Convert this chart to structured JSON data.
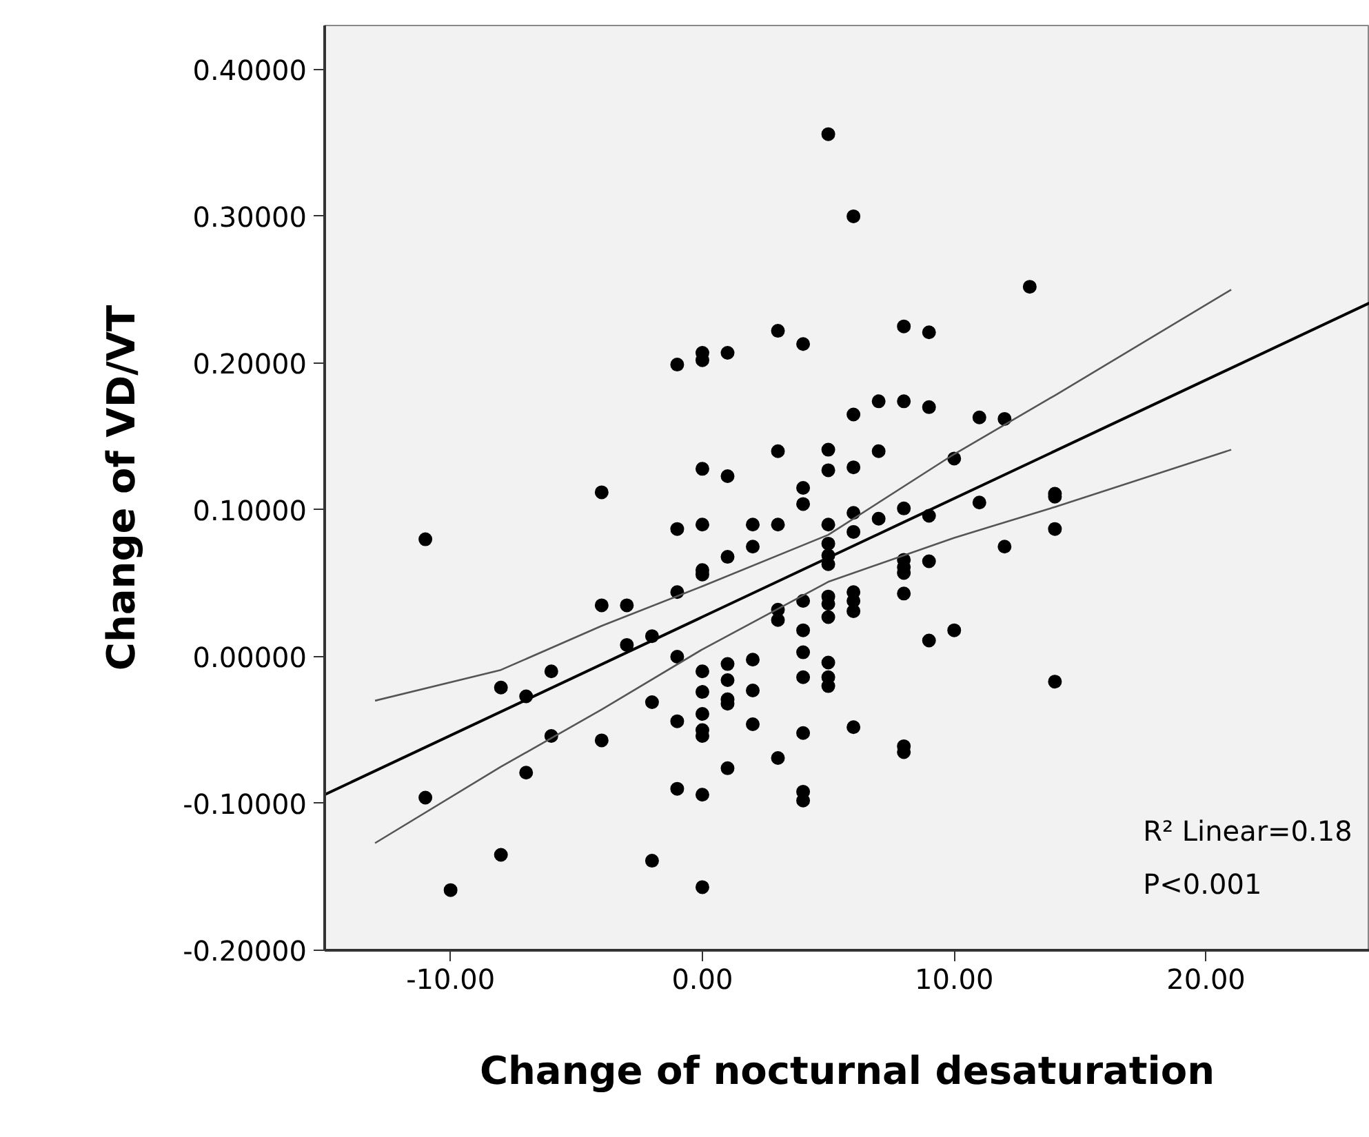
{
  "chart_data": {
    "type": "scatter",
    "xlabel": "Change of nocturnal desaturation",
    "ylabel": "Change of VD/VT",
    "xlim": [
      -15,
      26.5
    ],
    "ylim": [
      -0.2,
      0.43
    ],
    "xticks": [
      {
        "value": -10,
        "label": "-10.00"
      },
      {
        "value": 0,
        "label": "0.00"
      },
      {
        "value": 10,
        "label": "10.00"
      },
      {
        "value": 20,
        "label": "20.00"
      }
    ],
    "yticks": [
      {
        "value": -0.2,
        "label": "-0.20000"
      },
      {
        "value": -0.1,
        "label": "-0.10000"
      },
      {
        "value": 0,
        "label": "0.00000"
      },
      {
        "value": 0.1,
        "label": "0.10000"
      },
      {
        "value": 0.2,
        "label": "0.20000"
      },
      {
        "value": 0.3,
        "label": "0.30000"
      },
      {
        "value": 0.4,
        "label": "0.40000"
      }
    ],
    "grid": false,
    "marker": "circle",
    "line_style": "solid",
    "annotations": [
      "R² Linear=0.18",
      "P<0.001"
    ],
    "series": [
      {
        "color": "#000000",
        "x": [
          5,
          3,
          4,
          -1,
          0,
          0,
          1,
          3,
          5,
          5,
          0,
          1,
          4,
          -4,
          6,
          13,
          8,
          9,
          6,
          7,
          8,
          9,
          11,
          12,
          6,
          7,
          10,
          14,
          4,
          -11,
          -1,
          0,
          2,
          3,
          5,
          2,
          1,
          5,
          5,
          5,
          0,
          0,
          -1,
          -4,
          -3,
          3,
          3,
          4,
          5,
          5,
          5,
          4,
          -3,
          -2,
          -1,
          4,
          4,
          5,
          5,
          5,
          -8,
          -7,
          -6,
          -6,
          -4,
          -2,
          -1,
          0,
          0,
          0,
          0,
          0,
          1,
          1,
          1,
          1,
          2,
          2,
          2,
          3,
          4,
          1,
          -11,
          -7,
          -1,
          0,
          4,
          4,
          -8,
          -2,
          -10,
          0,
          6,
          6,
          7,
          8,
          9,
          11,
          14,
          14,
          12,
          8,
          8,
          8,
          9,
          8,
          6,
          6,
          6,
          10,
          9,
          14,
          6,
          8,
          8
        ],
        "values": [
          0.356,
          0.222,
          0.213,
          0.199,
          0.207,
          0.202,
          0.207,
          0.14,
          0.141,
          0.127,
          0.128,
          0.123,
          0.115,
          0.112,
          0.3,
          0.252,
          0.225,
          0.221,
          0.165,
          0.174,
          0.174,
          0.17,
          0.163,
          0.162,
          0.129,
          0.14,
          0.135,
          0.111,
          0.104,
          0.08,
          0.087,
          0.09,
          0.09,
          0.09,
          0.09,
          0.075,
          0.068,
          0.077,
          0.069,
          0.063,
          0.059,
          0.056,
          0.044,
          0.035,
          0.035,
          0.032,
          0.025,
          0.038,
          0.041,
          0.036,
          0.027,
          0.018,
          0.008,
          0.014,
          0.0,
          0.003,
          -0.014,
          -0.004,
          -0.014,
          -0.02,
          -0.021,
          -0.027,
          -0.01,
          -0.054,
          -0.057,
          -0.031,
          -0.044,
          -0.01,
          -0.024,
          -0.039,
          -0.05,
          -0.054,
          -0.005,
          -0.016,
          -0.029,
          -0.032,
          -0.002,
          -0.023,
          -0.046,
          -0.069,
          -0.052,
          -0.076,
          -0.096,
          -0.079,
          -0.09,
          -0.094,
          -0.092,
          -0.098,
          -0.135,
          -0.139,
          -0.159,
          -0.157,
          0.098,
          0.085,
          0.094,
          0.101,
          0.096,
          0.105,
          0.109,
          0.087,
          0.075,
          0.066,
          0.061,
          0.057,
          0.065,
          0.043,
          0.044,
          0.038,
          0.031,
          0.018,
          0.011,
          -0.017,
          -0.048,
          -0.061,
          -0.065
        ]
      },
      {
        "type": "line",
        "marker": "none",
        "color": "#000000",
        "x": [
          -15,
          26.5
        ],
        "values": [
          -0.094,
          0.241
        ]
      },
      {
        "type": "line",
        "marker": "none",
        "color": "#555555",
        "x": [
          -13,
          -8,
          -4,
          0,
          5,
          10,
          14,
          21
        ],
        "values": [
          -0.03,
          -0.009,
          0.021,
          0.048,
          0.083,
          0.138,
          0.178,
          0.25
        ]
      },
      {
        "type": "line",
        "marker": "none",
        "color": "#555555",
        "x": [
          -13,
          -8,
          -4,
          0,
          5,
          10,
          14,
          21
        ],
        "values": [
          -0.127,
          -0.075,
          -0.036,
          0.005,
          0.051,
          0.081,
          0.102,
          0.141
        ]
      }
    ]
  }
}
